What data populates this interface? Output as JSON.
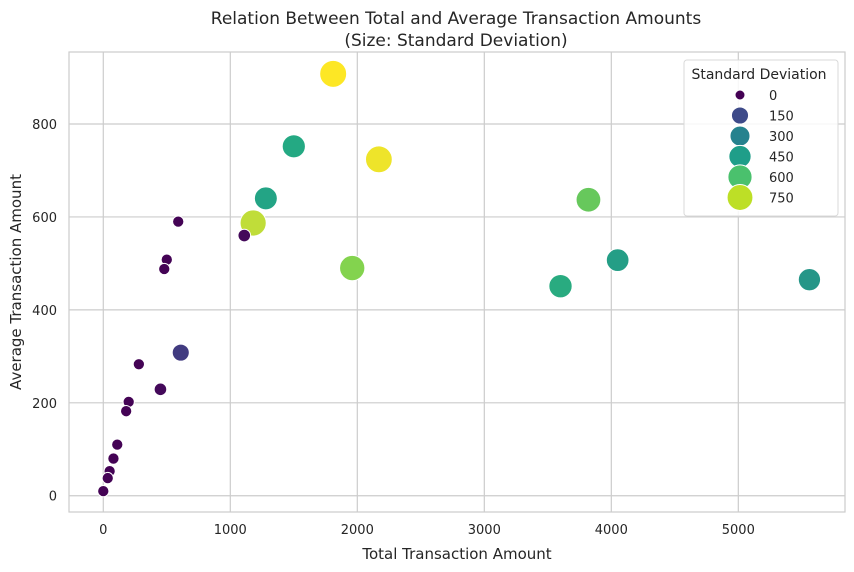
{
  "chart_data": {
    "type": "scatter",
    "title": "Relation Between Total and Average Transaction Amounts",
    "subtitle": "(Size: Standard Deviation)",
    "xlabel": "Total Transaction Amount",
    "ylabel": "Average Transaction Amount",
    "xlim": [
      -270,
      5840
    ],
    "ylim": [
      -35,
      955
    ],
    "xticks": [
      0,
      1000,
      2000,
      3000,
      4000,
      5000
    ],
    "yticks": [
      0,
      200,
      400,
      600,
      800
    ],
    "grid": true,
    "legend": {
      "title": "Standard Deviation",
      "placement": "top-right",
      "entries": [
        {
          "label": "0",
          "value": 0,
          "color": "#440154"
        },
        {
          "label": "150",
          "value": 150,
          "color": "#3e4a89"
        },
        {
          "label": "300",
          "value": 300,
          "color": "#26828e"
        },
        {
          "label": "450",
          "value": 450,
          "color": "#1f9e89"
        },
        {
          "label": "600",
          "value": 600,
          "color": "#4ac16d"
        },
        {
          "label": "750",
          "value": 750,
          "color": "#bddf26"
        }
      ]
    },
    "points": [
      {
        "x": 1810,
        "y": 908,
        "sd": 860
      },
      {
        "x": 2170,
        "y": 724,
        "sd": 840
      },
      {
        "x": 1500,
        "y": 752,
        "sd": 520
      },
      {
        "x": 1280,
        "y": 640,
        "sd": 500
      },
      {
        "x": 1180,
        "y": 587,
        "sd": 780
      },
      {
        "x": 1960,
        "y": 490,
        "sd": 700
      },
      {
        "x": 3820,
        "y": 637,
        "sd": 650
      },
      {
        "x": 3600,
        "y": 451,
        "sd": 530
      },
      {
        "x": 4050,
        "y": 507,
        "sd": 480
      },
      {
        "x": 5560,
        "y": 465,
        "sd": 450
      },
      {
        "x": 1110,
        "y": 560,
        "sd": 20
      },
      {
        "x": 590,
        "y": 590,
        "sd": 5
      },
      {
        "x": 500,
        "y": 508,
        "sd": 5
      },
      {
        "x": 480,
        "y": 488,
        "sd": 5
      },
      {
        "x": 610,
        "y": 308,
        "sd": 150
      },
      {
        "x": 280,
        "y": 283,
        "sd": 5
      },
      {
        "x": 450,
        "y": 229,
        "sd": 20
      },
      {
        "x": 200,
        "y": 202,
        "sd": 5
      },
      {
        "x": 180,
        "y": 182,
        "sd": 5
      },
      {
        "x": 110,
        "y": 110,
        "sd": 5
      },
      {
        "x": 80,
        "y": 80,
        "sd": 5
      },
      {
        "x": 50,
        "y": 53,
        "sd": 5
      },
      {
        "x": 35,
        "y": 38,
        "sd": 5
      },
      {
        "x": 0,
        "y": 10,
        "sd": 5
      }
    ]
  }
}
